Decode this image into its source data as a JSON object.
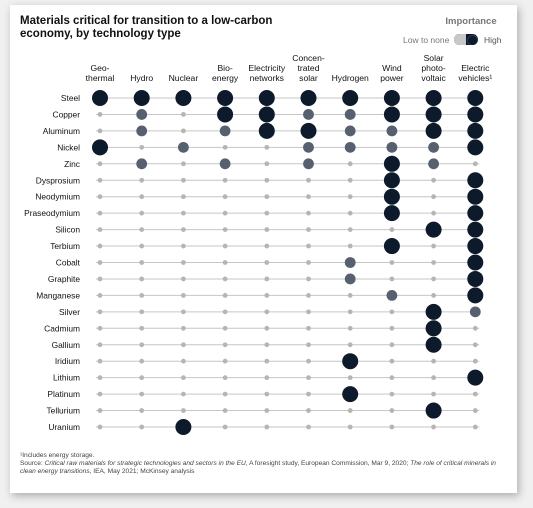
{
  "title": "Materials critical for transition to a low-carbon economy, by technology type",
  "legend": {
    "title": "Importance",
    "low_label": "Low to none",
    "high_label": "High"
  },
  "colors": {
    "high": "#0d1a2b",
    "medium": "#56606e",
    "low": "#b5b5b5",
    "line": "#c6c6c6"
  },
  "chart_data": {
    "type": "dot-matrix",
    "scale": {
      "0": "Low to none",
      "1": "Medium",
      "2": "High"
    },
    "columns": [
      [
        "Geo-",
        "thermal"
      ],
      [
        "Hydro"
      ],
      [
        "Nuclear"
      ],
      [
        "Bio-",
        "energy"
      ],
      [
        "Electricity",
        "networks"
      ],
      [
        "Concen-",
        "trated",
        "solar"
      ],
      [
        "Hydrogen"
      ],
      [
        "Wind",
        "power"
      ],
      [
        "Solar",
        "photo-",
        "voltaic"
      ],
      [
        "Electric",
        "vehicles¹"
      ]
    ],
    "rows": [
      {
        "label": "Steel",
        "values": [
          2,
          2,
          2,
          2,
          2,
          2,
          2,
          2,
          2,
          2
        ]
      },
      {
        "label": "Copper",
        "values": [
          0,
          1,
          0,
          2,
          2,
          1,
          1,
          2,
          2,
          2
        ]
      },
      {
        "label": "Aluminum",
        "values": [
          0,
          1,
          0,
          1,
          2,
          2,
          1,
          1,
          2,
          2
        ]
      },
      {
        "label": "Nickel",
        "values": [
          2,
          0,
          1,
          0,
          0,
          1,
          1,
          1,
          1,
          2
        ]
      },
      {
        "label": "Zinc",
        "values": [
          0,
          1,
          0,
          1,
          0,
          1,
          0,
          2,
          1,
          0
        ]
      },
      {
        "label": "Dysprosium",
        "values": [
          0,
          0,
          0,
          0,
          0,
          0,
          0,
          2,
          0,
          2
        ]
      },
      {
        "label": "Neodymium",
        "values": [
          0,
          0,
          0,
          0,
          0,
          0,
          0,
          2,
          0,
          2
        ]
      },
      {
        "label": "Praseodymium",
        "values": [
          0,
          0,
          0,
          0,
          0,
          0,
          0,
          2,
          0,
          2
        ]
      },
      {
        "label": "Silicon",
        "values": [
          0,
          0,
          0,
          0,
          0,
          0,
          0,
          0,
          2,
          2
        ]
      },
      {
        "label": "Terbium",
        "values": [
          0,
          0,
          0,
          0,
          0,
          0,
          0,
          2,
          0,
          2
        ]
      },
      {
        "label": "Cobalt",
        "values": [
          0,
          0,
          0,
          0,
          0,
          0,
          1,
          0,
          0,
          2
        ]
      },
      {
        "label": "Graphite",
        "values": [
          0,
          0,
          0,
          0,
          0,
          0,
          1,
          0,
          0,
          2
        ]
      },
      {
        "label": "Manganese",
        "values": [
          0,
          0,
          0,
          0,
          0,
          0,
          0,
          1,
          0,
          2
        ]
      },
      {
        "label": "Silver",
        "values": [
          0,
          0,
          0,
          0,
          0,
          0,
          0,
          0,
          2,
          1
        ]
      },
      {
        "label": "Cadmium",
        "values": [
          0,
          0,
          0,
          0,
          0,
          0,
          0,
          0,
          2,
          0
        ]
      },
      {
        "label": "Gallium",
        "values": [
          0,
          0,
          0,
          0,
          0,
          0,
          0,
          0,
          2,
          0
        ]
      },
      {
        "label": "Iridium",
        "values": [
          0,
          0,
          0,
          0,
          0,
          0,
          2,
          0,
          0,
          0
        ]
      },
      {
        "label": "Lithium",
        "values": [
          0,
          0,
          0,
          0,
          0,
          0,
          0,
          0,
          0,
          2
        ]
      },
      {
        "label": "Platinum",
        "values": [
          0,
          0,
          0,
          0,
          0,
          0,
          2,
          0,
          0,
          0
        ]
      },
      {
        "label": "Tellurium",
        "values": [
          0,
          0,
          0,
          0,
          0,
          0,
          0,
          0,
          2,
          0
        ]
      },
      {
        "label": "Uranium",
        "values": [
          0,
          0,
          2,
          0,
          0,
          0,
          0,
          0,
          0,
          0
        ]
      }
    ]
  },
  "footnote": {
    "note": "¹Includes energy storage.",
    "source_prefix": "Source: ",
    "source_title_1": "Critical raw materials for strategic technologies and sectors in the EU",
    "source_mid": ", A foresight study, European Commission, Mar 9, 2020; ",
    "source_title_2": "The role of critical minerals in clean energy transitions",
    "source_suffix": ", IEA, May 2021; McKinsey analysis"
  }
}
